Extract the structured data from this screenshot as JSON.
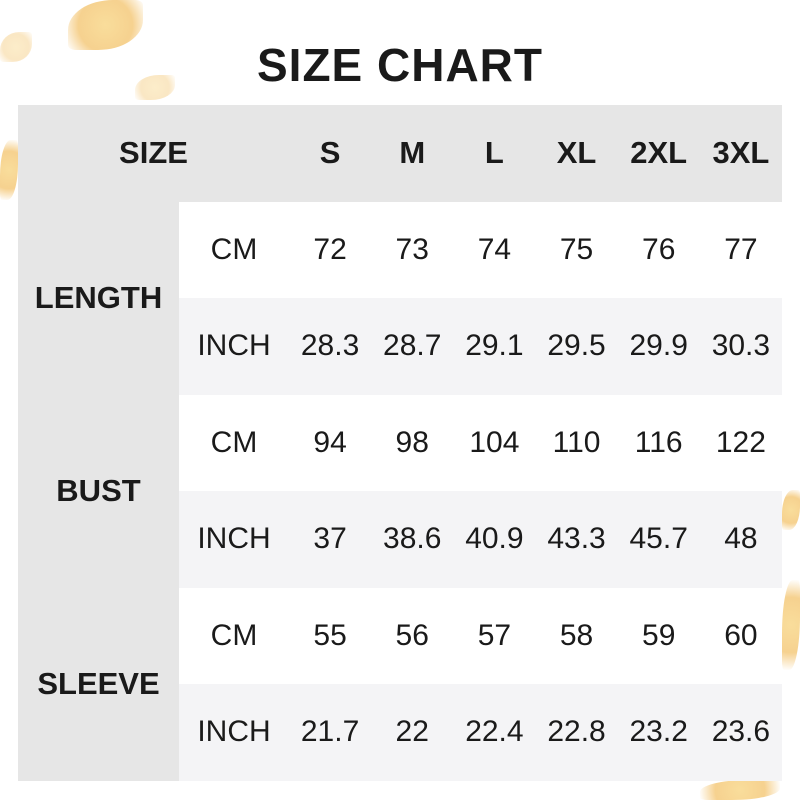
{
  "title": "SIZE CHART",
  "header": {
    "label": "SIZE",
    "sizes": [
      "S",
      "M",
      "L",
      "XL",
      "2XL",
      "3XL"
    ]
  },
  "rows": [
    {
      "measure": "LENGTH",
      "cm": {
        "unit": "CM",
        "values": [
          "72",
          "73",
          "74",
          "75",
          "76",
          "77"
        ]
      },
      "inch": {
        "unit": "INCH",
        "values": [
          "28.3",
          "28.7",
          "29.1",
          "29.5",
          "29.9",
          "30.3"
        ]
      }
    },
    {
      "measure": "BUST",
      "cm": {
        "unit": "CM",
        "values": [
          "94",
          "98",
          "104",
          "110",
          "116",
          "122"
        ]
      },
      "inch": {
        "unit": "INCH",
        "values": [
          "37",
          "38.6",
          "40.9",
          "43.3",
          "45.7",
          "48"
        ]
      }
    },
    {
      "measure": "SLEEVE",
      "cm": {
        "unit": "CM",
        "values": [
          "55",
          "56",
          "57",
          "58",
          "59",
          "60"
        ]
      },
      "inch": {
        "unit": "INCH",
        "values": [
          "21.7",
          "22",
          "22.4",
          "22.8",
          "23.2",
          "23.6"
        ]
      }
    }
  ],
  "colors": {
    "header_bg": "#e6e6e6",
    "alt_row_bg": "#f4f4f6",
    "leaf": "#f3c26a"
  }
}
